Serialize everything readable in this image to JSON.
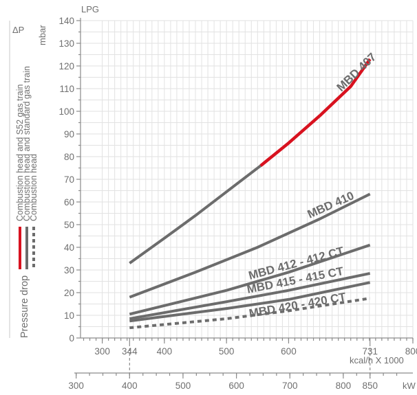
{
  "chart_data": {
    "type": "line",
    "title": "LPG",
    "ylabel_symbol": "ΔP",
    "yunit": "mbar",
    "ylabel": "Pressure drop",
    "ylim": [
      0,
      140
    ],
    "yticks": [
      0,
      10,
      20,
      30,
      40,
      50,
      60,
      70,
      80,
      90,
      100,
      110,
      120,
      130,
      140
    ],
    "x_axis_1": {
      "label": "kcal/h X 1000",
      "xlim": [
        265,
        800
      ],
      "major_ticks": [
        300,
        344,
        400,
        500,
        600,
        731,
        800
      ],
      "tick_labels": [
        "300",
        "344",
        "400",
        "500",
        "600",
        "731",
        "800"
      ]
    },
    "x_axis_2": {
      "label": "kW",
      "major_ticks": [
        300,
        400,
        500,
        600,
        700,
        800,
        850
      ],
      "tick_labels": [
        "300",
        "400",
        "500",
        "600",
        "700",
        "800",
        "850"
      ]
    },
    "grid": true,
    "legend": [
      {
        "style": "solid-red",
        "label": "Combustion head and S52 gas train"
      },
      {
        "style": "solid-grey",
        "label": "Combustion head and standard gas train"
      },
      {
        "style": "dashed-grey",
        "label": "Combustion head"
      }
    ],
    "series": [
      {
        "name": "MBD 407",
        "style": "solid",
        "x": [
          344,
          400,
          450,
          500,
          555,
          600,
          650,
          700,
          731
        ],
        "y": [
          33,
          44,
          54,
          64.5,
          76,
          86,
          98,
          111,
          123
        ]
      },
      {
        "name": "MBD 410",
        "style": "solid",
        "x": [
          344,
          450,
          550,
          650,
          731
        ],
        "y": [
          18,
          29,
          40,
          52.5,
          63.5
        ]
      },
      {
        "name": "MBD 412 - 412 CT",
        "style": "solid",
        "x": [
          344,
          500,
          600,
          731
        ],
        "y": [
          10.5,
          21,
          29,
          41
        ]
      },
      {
        "name": "MBD 415 - 415 CT",
        "style": "solid",
        "x": [
          344,
          500,
          600,
          731
        ],
        "y": [
          8.5,
          16,
          21,
          28.5
        ]
      },
      {
        "name": "MBD 420 - 420 CT",
        "style": "solid",
        "x": [
          344,
          500,
          600,
          731
        ],
        "y": [
          7.5,
          13,
          17,
          24.5
        ]
      },
      {
        "name": "",
        "style": "dashed",
        "x": [
          344,
          500,
          600,
          731
        ],
        "y": [
          4.5,
          8.5,
          12,
          17.5
        ]
      }
    ],
    "highlight": {
      "series": "MBD 407",
      "from_x": 555,
      "color": "#d8121f"
    },
    "colors": {
      "line": "#6c6c6c",
      "highlight": "#d8121f",
      "grid": "#e2e2e2",
      "axis": "#8a8a8a",
      "text": "#6f6f6f"
    }
  }
}
